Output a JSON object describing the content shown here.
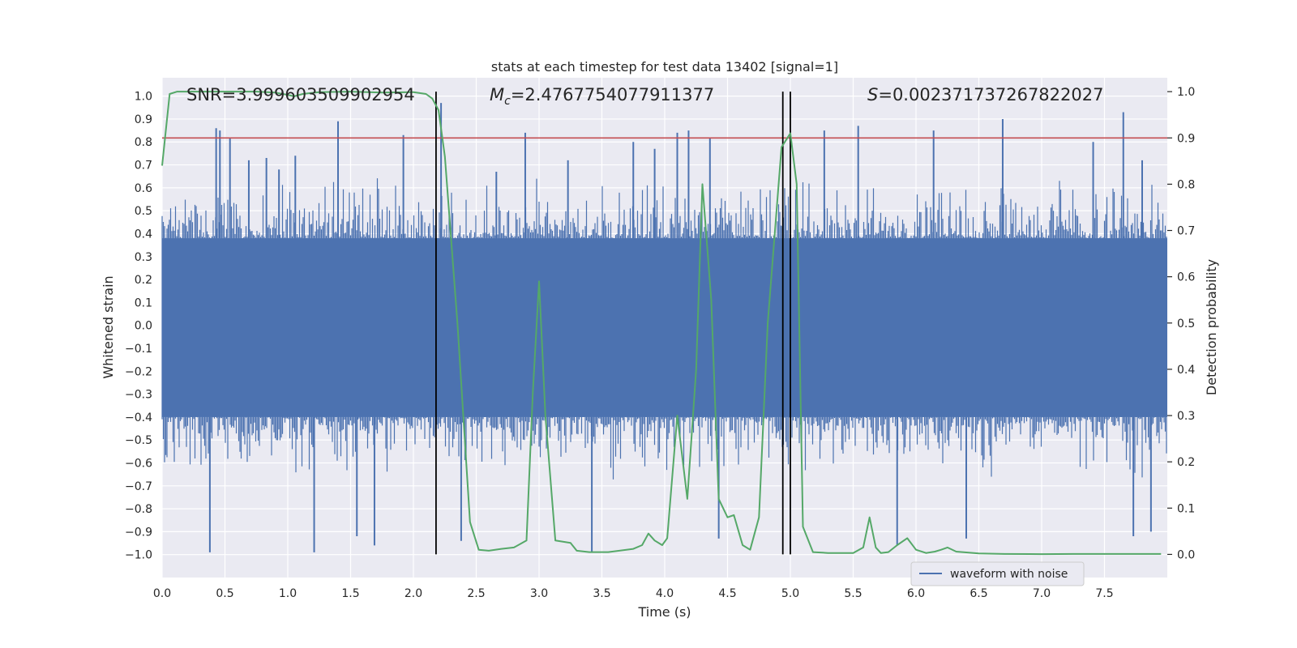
{
  "chart_data": {
    "type": "line",
    "title": "stats at each timestep for test data 13402 [signal=1]",
    "xlabel": "Time (s)",
    "ylabel_left": "Whitened strain",
    "ylabel_right": "Detection probability",
    "xlim": [
      0.0,
      8.0
    ],
    "ylim_left": [
      -1.1,
      1.08
    ],
    "ylim_right": [
      -0.05,
      1.03
    ],
    "grid": true,
    "x_ticks": [
      0.0,
      0.5,
      1.0,
      1.5,
      2.0,
      2.5,
      3.0,
      3.5,
      4.0,
      4.5,
      5.0,
      5.5,
      6.0,
      6.5,
      7.0,
      7.5
    ],
    "x_tick_labels": [
      "0.0",
      "0.5",
      "1.0",
      "1.5",
      "2.0",
      "2.5",
      "3.0",
      "3.5",
      "4.0",
      "4.5",
      "5.0",
      "5.5",
      "6.0",
      "6.5",
      "7.0",
      "7.5"
    ],
    "y_ticks_left": [
      -1.0,
      -0.9,
      -0.8,
      -0.7,
      -0.6,
      -0.5,
      -0.4,
      -0.3,
      -0.2,
      -0.1,
      0.0,
      0.1,
      0.2,
      0.3,
      0.4,
      0.5,
      0.6,
      0.7,
      0.8,
      0.9,
      1.0
    ],
    "y_tick_labels_left": [
      "−1.0",
      "−0.9",
      "−0.8",
      "−0.7",
      "−0.6",
      "−0.5",
      "−0.4",
      "−0.3",
      "−0.2",
      "−0.1",
      "0.0",
      "0.1",
      "0.2",
      "0.3",
      "0.4",
      "0.5",
      "0.6",
      "0.7",
      "0.8",
      "0.9",
      "1.0"
    ],
    "y_ticks_right": [
      0.0,
      0.1,
      0.2,
      0.3,
      0.4,
      0.5,
      0.6,
      0.7,
      0.8,
      0.9,
      1.0
    ],
    "y_tick_labels_right": [
      "0.0",
      "0.1",
      "0.2",
      "0.3",
      "0.4",
      "0.5",
      "0.6",
      "0.7",
      "0.8",
      "0.9",
      "1.0"
    ],
    "annotations": {
      "snr": "SNR=3.999603509902954",
      "mc_symbol": "M",
      "mc_sub": "c",
      "mc_value": "=2.4767754077911377",
      "s_symbol": "S",
      "s_value": "=0.002371737267822027"
    },
    "legend": {
      "label": "waveform with noise",
      "loc": "lower right"
    },
    "threshold": {
      "value": 0.9,
      "axis": "right",
      "color": "#c44e52"
    },
    "vlines": [
      2.18,
      4.94,
      5.0
    ],
    "waveform": {
      "name": "waveform with noise",
      "axis": "left",
      "color": "#4c72b0",
      "band_low": -0.4,
      "band_high": 0.38,
      "spike_min": -1.0,
      "spike_max": 0.98,
      "spikes": [
        [
          0.38,
          -0.99
        ],
        [
          0.43,
          0.86
        ],
        [
          0.46,
          0.85
        ],
        [
          0.54,
          0.82
        ],
        [
          0.69,
          0.72
        ],
        [
          0.83,
          0.73
        ],
        [
          0.93,
          0.68
        ],
        [
          1.06,
          0.74
        ],
        [
          1.21,
          -0.99
        ],
        [
          1.4,
          0.89
        ],
        [
          1.55,
          -0.92
        ],
        [
          1.69,
          -0.96
        ],
        [
          1.92,
          0.83
        ],
        [
          2.22,
          0.97
        ],
        [
          2.38,
          -0.94
        ],
        [
          2.66,
          0.67
        ],
        [
          2.89,
          0.84
        ],
        [
          3.23,
          0.72
        ],
        [
          3.42,
          -0.99
        ],
        [
          3.75,
          0.8
        ],
        [
          3.92,
          0.77
        ],
        [
          4.1,
          0.84
        ],
        [
          4.19,
          0.85
        ],
        [
          4.36,
          0.82
        ],
        [
          4.43,
          -0.93
        ],
        [
          5.27,
          0.85
        ],
        [
          5.54,
          0.87
        ],
        [
          5.85,
          -0.96
        ],
        [
          6.14,
          0.85
        ],
        [
          6.4,
          -0.93
        ],
        [
          6.69,
          0.9
        ],
        [
          7.41,
          0.8
        ],
        [
          7.65,
          0.93
        ],
        [
          7.73,
          -0.92
        ],
        [
          7.8,
          0.72
        ],
        [
          7.87,
          -0.9
        ]
      ]
    },
    "detection_probability": {
      "axis": "right",
      "color": "#55a868",
      "x": [
        0.0,
        0.06,
        0.12,
        0.25,
        0.5,
        0.75,
        0.9,
        1.0,
        1.05,
        1.12,
        1.25,
        1.5,
        1.75,
        2.0,
        2.1,
        2.15,
        2.2,
        2.25,
        2.35,
        2.45,
        2.52,
        2.6,
        2.7,
        2.8,
        2.9,
        2.95,
        3.0,
        3.05,
        3.13,
        3.25,
        3.3,
        3.4,
        3.55,
        3.75,
        3.82,
        3.87,
        3.92,
        3.98,
        4.02,
        4.1,
        4.18,
        4.25,
        4.3,
        4.37,
        4.43,
        4.5,
        4.55,
        4.62,
        4.68,
        4.75,
        4.82,
        4.93,
        5.0,
        5.05,
        5.1,
        5.18,
        5.3,
        5.5,
        5.58,
        5.63,
        5.68,
        5.72,
        5.78,
        5.85,
        5.93,
        6.0,
        6.08,
        6.15,
        6.2,
        6.25,
        6.32,
        6.5,
        6.7,
        7.0,
        7.25,
        7.5,
        7.75,
        7.95
      ],
      "y": [
        0.84,
        0.995,
        1.0,
        1.0,
        1.0,
        1.0,
        0.998,
        0.993,
        0.99,
        0.995,
        0.999,
        1.0,
        0.998,
        0.999,
        0.995,
        0.985,
        0.96,
        0.86,
        0.5,
        0.07,
        0.01,
        0.008,
        0.012,
        0.015,
        0.03,
        0.35,
        0.59,
        0.3,
        0.03,
        0.025,
        0.008,
        0.005,
        0.005,
        0.012,
        0.02,
        0.045,
        0.03,
        0.02,
        0.035,
        0.3,
        0.12,
        0.4,
        0.8,
        0.55,
        0.12,
        0.08,
        0.085,
        0.02,
        0.01,
        0.08,
        0.5,
        0.88,
        0.91,
        0.8,
        0.06,
        0.005,
        0.003,
        0.003,
        0.015,
        0.08,
        0.015,
        0.003,
        0.005,
        0.02,
        0.035,
        0.01,
        0.003,
        0.006,
        0.01,
        0.015,
        0.006,
        0.002,
        0.001,
        0.0005,
        0.001,
        0.001,
        0.001,
        0.001
      ]
    }
  }
}
